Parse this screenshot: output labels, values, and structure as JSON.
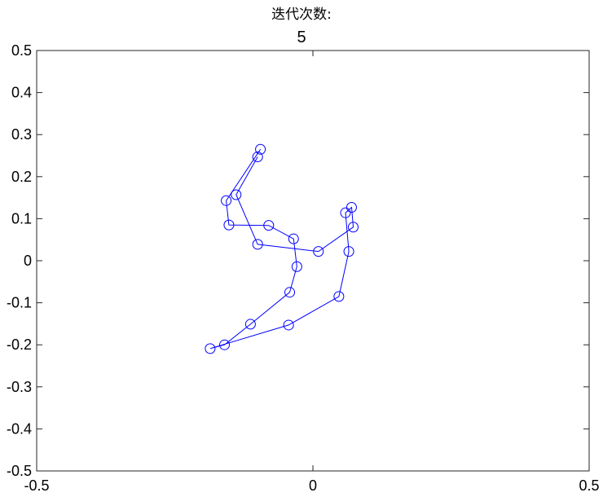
{
  "chart_data": {
    "type": "line",
    "title": "迭代次数:",
    "subtitle": "5",
    "xlim": [
      -0.5,
      0.5
    ],
    "ylim": [
      -0.5,
      0.5
    ],
    "xticks": [
      "-0.5",
      "0",
      "0.5"
    ],
    "yticks": [
      "0.5",
      "0.4",
      "0.3",
      "0.2",
      "0.1",
      "0",
      "-0.1",
      "-0.2",
      "-0.3",
      "-0.4",
      "-0.5"
    ],
    "grid": false,
    "marker": "circle",
    "series": [
      {
        "color": "#0000ff",
        "points": [
          [
            -0.095,
            0.265
          ],
          [
            -0.157,
            0.143
          ],
          [
            -0.152,
            0.085
          ],
          [
            -0.08,
            0.084
          ],
          [
            -0.035,
            0.052
          ],
          [
            -0.029,
            -0.014
          ],
          [
            -0.042,
            -0.075
          ],
          [
            -0.113,
            -0.151
          ],
          [
            -0.16,
            -0.2
          ],
          [
            -0.186,
            -0.209
          ],
          [
            -0.044,
            -0.153
          ],
          [
            0.047,
            -0.085
          ],
          [
            0.065,
            0.022
          ],
          [
            0.059,
            0.114
          ],
          [
            0.07,
            0.127
          ],
          [
            0.073,
            0.08
          ],
          [
            0.01,
            0.022
          ],
          [
            -0.1,
            0.039
          ],
          [
            -0.139,
            0.157
          ],
          [
            -0.1,
            0.247
          ]
        ]
      }
    ]
  }
}
